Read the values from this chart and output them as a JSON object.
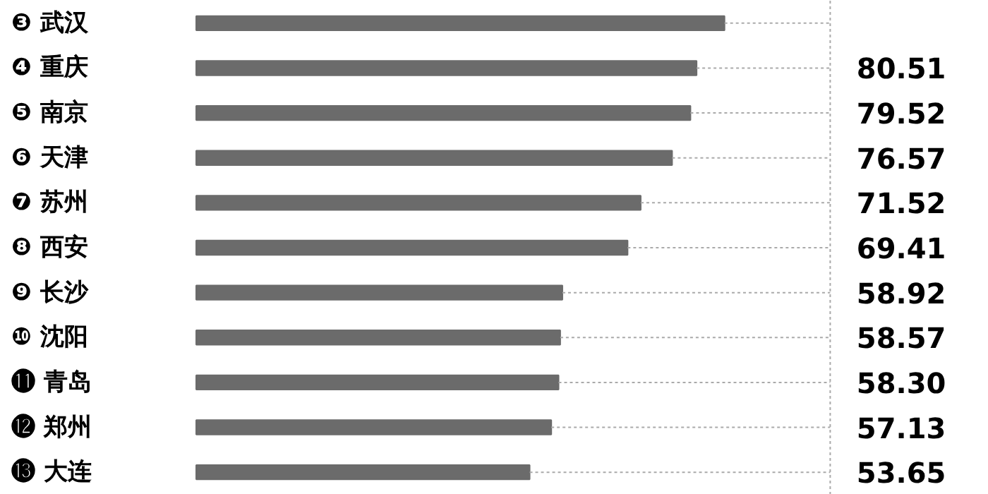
{
  "chart_data": {
    "type": "bar",
    "orientation": "horizontal",
    "categories": [
      "❸ 武汉",
      "❹ 重庆",
      "❺ 南京",
      "❻ 天津",
      "❼ 苏州",
      "❽ 西安",
      "❾ 长沙",
      "❿ 沈阳",
      "⓫ 青岛",
      "⓬ 郑州",
      "⓭ 大连"
    ],
    "values": [
      85.0,
      80.51,
      79.52,
      76.57,
      71.52,
      69.41,
      58.92,
      58.57,
      58.3,
      57.13,
      53.65
    ],
    "value_labels": [
      null,
      "80.51",
      "79.52",
      "76.57",
      "71.52",
      "69.41",
      "58.92",
      "58.57",
      "58.30",
      "57.13",
      "53.65"
    ],
    "color": "#6b6b6b"
  }
}
